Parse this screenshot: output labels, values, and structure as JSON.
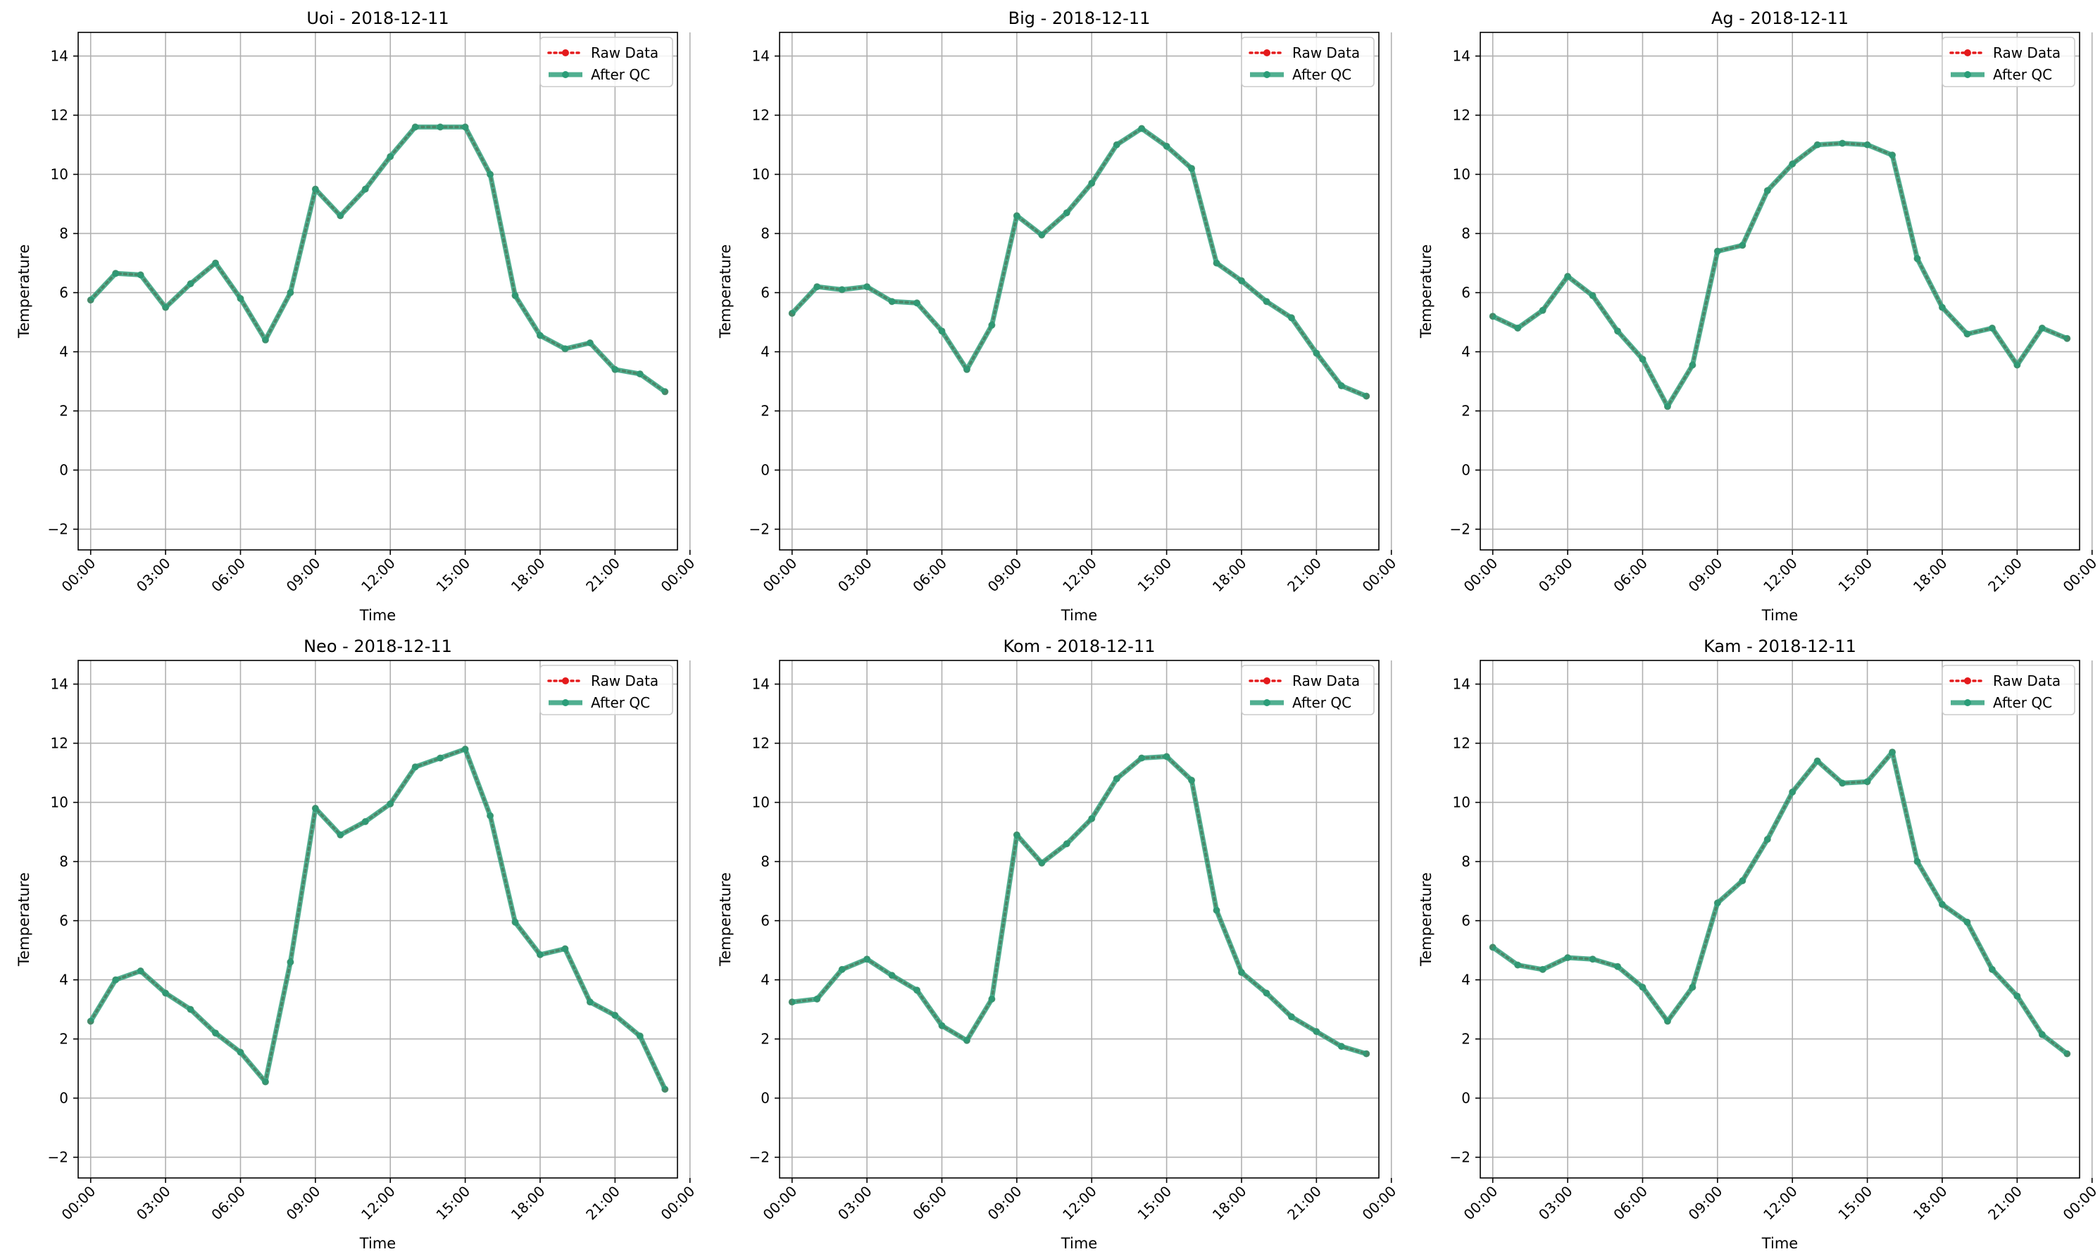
{
  "chart_data": [
    {
      "type": "line",
      "title": "Uoi - 2018-12-11",
      "xlabel": "Time",
      "ylabel": "Temperature",
      "ylim": [
        -2.7,
        14.8
      ],
      "xlim": [
        -0.5,
        23.5
      ],
      "yticks": [
        -2,
        0,
        2,
        4,
        6,
        8,
        10,
        12,
        14
      ],
      "xticks": [
        "00:00",
        "03:00",
        "06:00",
        "09:00",
        "12:00",
        "15:00",
        "18:00",
        "21:00",
        "00:00"
      ],
      "x_hours": [
        0,
        1,
        2,
        3,
        4,
        5,
        6,
        7,
        8,
        9,
        10,
        11,
        12,
        13,
        14,
        15,
        16,
        17,
        18,
        19,
        20,
        21,
        22,
        23
      ],
      "grid": true,
      "legend": "top-right",
      "series": [
        {
          "name": "Raw Data",
          "color": "#e41a1c",
          "values": [
            5.75,
            6.65,
            6.6,
            5.5,
            6.3,
            7.0,
            5.8,
            4.4,
            6.0,
            9.5,
            8.6,
            9.5,
            10.6,
            11.6,
            11.6,
            11.6,
            10.0,
            5.9,
            4.55,
            4.1,
            4.3,
            3.4,
            3.25,
            2.65
          ]
        },
        {
          "name": "After QC",
          "color": "#2a9d78",
          "values": [
            5.75,
            6.65,
            6.6,
            5.5,
            6.3,
            7.0,
            5.8,
            4.4,
            6.0,
            9.5,
            8.6,
            9.5,
            10.6,
            11.6,
            11.6,
            11.6,
            10.0,
            5.9,
            4.55,
            4.1,
            4.3,
            3.4,
            3.25,
            2.65
          ]
        }
      ]
    },
    {
      "type": "line",
      "title": "Big - 2018-12-11",
      "xlabel": "Time",
      "ylabel": "Temperature",
      "ylim": [
        -2.7,
        14.8
      ],
      "xlim": [
        -0.5,
        23.5
      ],
      "yticks": [
        -2,
        0,
        2,
        4,
        6,
        8,
        10,
        12,
        14
      ],
      "xticks": [
        "00:00",
        "03:00",
        "06:00",
        "09:00",
        "12:00",
        "15:00",
        "18:00",
        "21:00",
        "00:00"
      ],
      "x_hours": [
        0,
        1,
        2,
        3,
        4,
        5,
        6,
        7,
        8,
        9,
        10,
        11,
        12,
        13,
        14,
        15,
        16,
        17,
        18,
        19,
        20,
        21,
        22,
        23
      ],
      "grid": true,
      "legend": "top-right",
      "series": [
        {
          "name": "Raw Data",
          "color": "#e41a1c",
          "values": [
            5.3,
            6.2,
            6.1,
            6.2,
            5.7,
            5.65,
            4.7,
            3.4,
            4.9,
            8.6,
            7.95,
            8.7,
            9.7,
            11.0,
            11.55,
            10.95,
            10.2,
            7.0,
            6.4,
            5.7,
            5.15,
            3.95,
            2.85,
            2.5
          ]
        },
        {
          "name": "After QC",
          "color": "#2a9d78",
          "values": [
            5.3,
            6.2,
            6.1,
            6.2,
            5.7,
            5.65,
            4.7,
            3.4,
            4.9,
            8.6,
            7.95,
            8.7,
            9.7,
            11.0,
            11.55,
            10.95,
            10.2,
            7.0,
            6.4,
            5.7,
            5.15,
            3.95,
            2.85,
            2.5
          ]
        }
      ]
    },
    {
      "type": "line",
      "title": "Ag - 2018-12-11",
      "xlabel": "Time",
      "ylabel": "Temperature",
      "ylim": [
        -2.7,
        14.8
      ],
      "xlim": [
        -0.5,
        23.5
      ],
      "yticks": [
        -2,
        0,
        2,
        4,
        6,
        8,
        10,
        12,
        14
      ],
      "xticks": [
        "00:00",
        "03:00",
        "06:00",
        "09:00",
        "12:00",
        "15:00",
        "18:00",
        "21:00",
        "00:00"
      ],
      "x_hours": [
        0,
        1,
        2,
        3,
        4,
        5,
        6,
        7,
        8,
        9,
        10,
        11,
        12,
        13,
        14,
        15,
        16,
        17,
        18,
        19,
        20,
        21,
        22,
        23
      ],
      "grid": true,
      "legend": "top-right",
      "series": [
        {
          "name": "Raw Data",
          "color": "#e41a1c",
          "values": [
            5.2,
            4.8,
            5.4,
            6.55,
            5.9,
            4.7,
            3.75,
            2.15,
            3.55,
            7.4,
            7.6,
            9.45,
            10.35,
            11.0,
            11.05,
            11.0,
            10.65,
            7.15,
            5.5,
            4.6,
            4.8,
            3.55,
            4.8,
            4.45
          ]
        },
        {
          "name": "After QC",
          "color": "#2a9d78",
          "values": [
            5.2,
            4.8,
            5.4,
            6.55,
            5.9,
            4.7,
            3.75,
            2.15,
            3.55,
            7.4,
            7.6,
            9.45,
            10.35,
            11.0,
            11.05,
            11.0,
            10.65,
            7.15,
            5.5,
            4.6,
            4.8,
            3.55,
            4.8,
            4.45
          ]
        }
      ]
    },
    {
      "type": "line",
      "title": "Neo - 2018-12-11",
      "xlabel": "Time",
      "ylabel": "Temperature",
      "ylim": [
        -2.7,
        14.8
      ],
      "xlim": [
        -0.5,
        23.5
      ],
      "yticks": [
        -2,
        0,
        2,
        4,
        6,
        8,
        10,
        12,
        14
      ],
      "xticks": [
        "00:00",
        "03:00",
        "06:00",
        "09:00",
        "12:00",
        "15:00",
        "18:00",
        "21:00",
        "00:00"
      ],
      "x_hours": [
        0,
        1,
        2,
        3,
        4,
        5,
        6,
        7,
        8,
        9,
        10,
        11,
        12,
        13,
        14,
        15,
        16,
        17,
        18,
        19,
        20,
        21,
        22,
        23
      ],
      "grid": true,
      "legend": "top-right",
      "series": [
        {
          "name": "Raw Data",
          "color": "#e41a1c",
          "values": [
            2.6,
            4.0,
            4.3,
            3.55,
            3.0,
            2.2,
            1.55,
            0.55,
            4.6,
            9.8,
            8.9,
            9.35,
            9.95,
            11.2,
            11.5,
            11.8,
            9.55,
            5.95,
            4.85,
            5.05,
            3.25,
            2.8,
            2.1,
            0.3
          ]
        },
        {
          "name": "After QC",
          "color": "#2a9d78",
          "values": [
            2.6,
            4.0,
            4.3,
            3.55,
            3.0,
            2.2,
            1.55,
            0.55,
            4.6,
            9.8,
            8.9,
            9.35,
            9.95,
            11.2,
            11.5,
            11.8,
            9.55,
            5.95,
            4.85,
            5.05,
            3.25,
            2.8,
            2.1,
            0.3
          ]
        }
      ]
    },
    {
      "type": "line",
      "title": "Kom - 2018-12-11",
      "xlabel": "Time",
      "ylabel": "Temperature",
      "ylim": [
        -2.7,
        14.8
      ],
      "xlim": [
        -0.5,
        23.5
      ],
      "yticks": [
        -2,
        0,
        2,
        4,
        6,
        8,
        10,
        12,
        14
      ],
      "xticks": [
        "00:00",
        "03:00",
        "06:00",
        "09:00",
        "12:00",
        "15:00",
        "18:00",
        "21:00",
        "00:00"
      ],
      "x_hours": [
        0,
        1,
        2,
        3,
        4,
        5,
        6,
        7,
        8,
        9,
        10,
        11,
        12,
        13,
        14,
        15,
        16,
        17,
        18,
        19,
        20,
        21,
        22,
        23
      ],
      "grid": true,
      "legend": "top-right",
      "series": [
        {
          "name": "Raw Data",
          "color": "#e41a1c",
          "values": [
            3.25,
            3.35,
            4.35,
            4.7,
            4.15,
            3.65,
            2.45,
            1.95,
            3.35,
            8.9,
            7.95,
            8.6,
            9.45,
            10.8,
            11.5,
            11.55,
            10.75,
            6.35,
            4.25,
            3.55,
            2.75,
            2.25,
            1.75,
            1.5
          ]
        },
        {
          "name": "After QC",
          "color": "#2a9d78",
          "values": [
            3.25,
            3.35,
            4.35,
            4.7,
            4.15,
            3.65,
            2.45,
            1.95,
            3.35,
            8.9,
            7.95,
            8.6,
            9.45,
            10.8,
            11.5,
            11.55,
            10.75,
            6.35,
            4.25,
            3.55,
            2.75,
            2.25,
            1.75,
            1.5
          ]
        }
      ]
    },
    {
      "type": "line",
      "title": "Kam - 2018-12-11",
      "xlabel": "Time",
      "ylabel": "Temperature",
      "ylim": [
        -2.7,
        14.8
      ],
      "xlim": [
        -0.5,
        23.5
      ],
      "yticks": [
        -2,
        0,
        2,
        4,
        6,
        8,
        10,
        12,
        14
      ],
      "xticks": [
        "00:00",
        "03:00",
        "06:00",
        "09:00",
        "12:00",
        "15:00",
        "18:00",
        "21:00",
        "00:00"
      ],
      "x_hours": [
        0,
        1,
        2,
        3,
        4,
        5,
        6,
        7,
        8,
        9,
        10,
        11,
        12,
        13,
        14,
        15,
        16,
        17,
        18,
        19,
        20,
        21,
        22,
        23
      ],
      "grid": true,
      "legend": "top-right",
      "series": [
        {
          "name": "Raw Data",
          "color": "#e41a1c",
          "values": [
            5.1,
            4.5,
            4.35,
            4.75,
            4.7,
            4.45,
            3.75,
            2.6,
            3.75,
            6.6,
            7.35,
            8.75,
            10.35,
            11.4,
            10.65,
            10.7,
            11.7,
            8.0,
            6.55,
            5.95,
            4.35,
            3.45,
            2.15,
            1.5
          ]
        },
        {
          "name": "After QC",
          "color": "#2a9d78",
          "values": [
            5.1,
            4.5,
            4.35,
            4.75,
            4.7,
            4.45,
            3.75,
            2.6,
            3.75,
            6.6,
            7.35,
            8.75,
            10.35,
            11.4,
            10.65,
            10.7,
            11.7,
            8.0,
            6.55,
            5.95,
            4.35,
            3.45,
            2.15,
            1.5
          ]
        }
      ]
    }
  ]
}
